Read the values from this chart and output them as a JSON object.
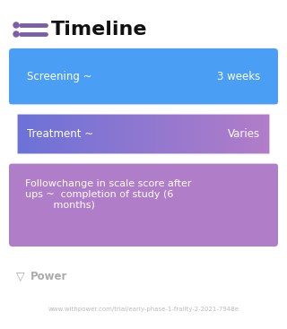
{
  "title": "Timeline",
  "title_fontsize": 16,
  "title_color": "#111111",
  "title_fontweight": "bold",
  "background_color": "#ffffff",
  "icon_color": "#7B5EA7",
  "cards": [
    {
      "label_left": "Screening ~",
      "label_right": "3 weeks",
      "color_left": "#4A9FF5",
      "color_right": "#4A9FF5",
      "gradient": false,
      "multiline": false
    },
    {
      "label_left": "Treatment ~",
      "label_right": "Varies",
      "color_left": "#6B72D8",
      "color_right": "#B47DC8",
      "gradient": true,
      "multiline": false
    },
    {
      "label_left": "Followchange in scale score after\nups ~  completion of study (6\n         months)",
      "label_right": "",
      "color_left": "#B07EC8",
      "color_right": "#B07EC8",
      "gradient": false,
      "multiline": true
    }
  ],
  "power_text": "Power",
  "url_text": "www.withpower.com/trial/early-phase-1-frailty-2-2021-7948e",
  "url_fontsize": 5.0,
  "power_fontsize": 8.5
}
